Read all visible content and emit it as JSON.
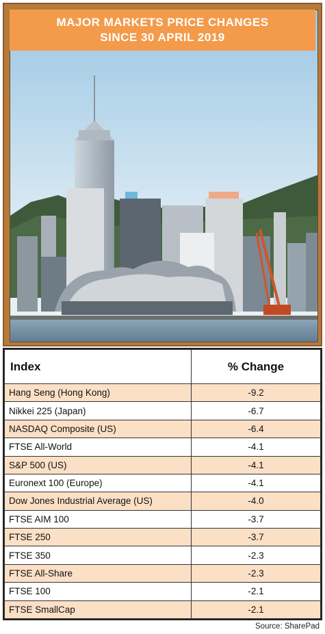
{
  "title": {
    "line1": "MAJOR MARKETS PRICE CHANGES",
    "line2": "SINCE 30 APRIL 2019"
  },
  "table": {
    "headers": [
      "Index",
      "% Change"
    ],
    "rows": [
      {
        "index": "Hang Seng (Hong Kong)",
        "change": "-9.2"
      },
      {
        "index": "Nikkei 225 (Japan)",
        "change": "-6.7"
      },
      {
        "index": "NASDAQ Composite (US)",
        "change": "-6.4"
      },
      {
        "index": "FTSE All-World",
        "change": "-4.1"
      },
      {
        "index": "S&P 500 (US)",
        "change": "-4.1"
      },
      {
        "index": "Euronext 100 (Europe)",
        "change": "-4.1"
      },
      {
        "index": "Dow Jones Industrial Average (US)",
        "change": "-4.0"
      },
      {
        "index": "FTSE AIM 100",
        "change": "-3.7"
      },
      {
        "index": "FTSE 250",
        "change": "-3.7"
      },
      {
        "index": "FTSE 350",
        "change": "-2.3"
      },
      {
        "index": "FTSE All-Share",
        "change": "-2.3"
      },
      {
        "index": "FTSE 100",
        "change": "-2.1"
      },
      {
        "index": "FTSE SmallCap",
        "change": "-2.1"
      }
    ]
  },
  "source": "Source: SharePad",
  "colors": {
    "banner": "#f39b4b",
    "frame": "#b57a3c",
    "row_highlight": "#fbe0c6"
  }
}
